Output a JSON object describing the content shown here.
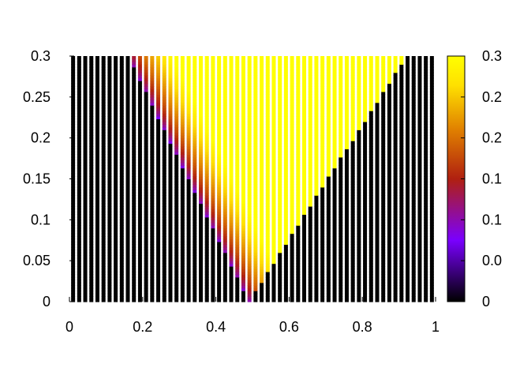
{
  "chart_data": {
    "type": "heatmap",
    "title": "",
    "xlabel": "",
    "ylabel": "",
    "xlim": [
      0,
      1
    ],
    "ylim": [
      0,
      0.3
    ],
    "x_ticks": [
      "0",
      "0.2",
      "0.4",
      "0.6",
      "0.8",
      "1"
    ],
    "y_ticks": [
      "0",
      "0.05",
      "0.1",
      "0.15",
      "0.2",
      "0.25",
      "0.3"
    ],
    "colorbar": {
      "palette": "black-purple-red-orange-yellow",
      "colors": [
        "#000000",
        "#7a00ff",
        "#b02010",
        "#e08000",
        "#ffe000",
        "#ffff00"
      ],
      "range": [
        0,
        0.3
      ],
      "tick_labels": [
        "0",
        "0.0",
        "0.1",
        "0.1",
        "0.2",
        "0.2",
        "0.3"
      ]
    },
    "stripes": {
      "count": 60,
      "x_start": 0.01,
      "x_end": 0.99
    },
    "regions": {
      "apex_x": 0.49,
      "left_edge_top_x": 0.16,
      "right_edge_top_x": 0.92,
      "left_band_width": 0.12
    }
  }
}
